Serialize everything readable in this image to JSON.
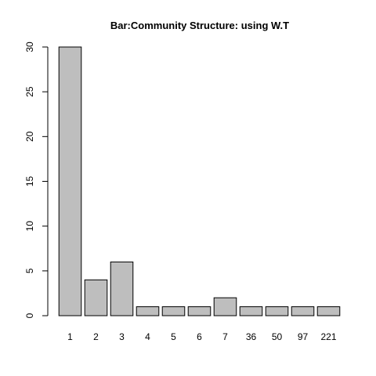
{
  "chart_data": {
    "type": "bar",
    "title": "Bar:Community Structure: using W.T",
    "xlabel": "",
    "ylabel": "",
    "categories": [
      "1",
      "2",
      "3",
      "4",
      "5",
      "6",
      "7",
      "36",
      "50",
      "97",
      "221"
    ],
    "values": [
      30,
      4,
      6,
      1,
      1,
      1,
      2,
      1,
      1,
      1,
      1
    ],
    "ylim": [
      0,
      30
    ],
    "yticks": [
      0,
      5,
      10,
      15,
      20,
      25,
      30
    ],
    "grid": false,
    "legend": "none",
    "colors": {
      "bar_fill": "#bebebe",
      "bar_stroke": "#000000",
      "axis": "#000000",
      "background": "#ffffff"
    }
  }
}
